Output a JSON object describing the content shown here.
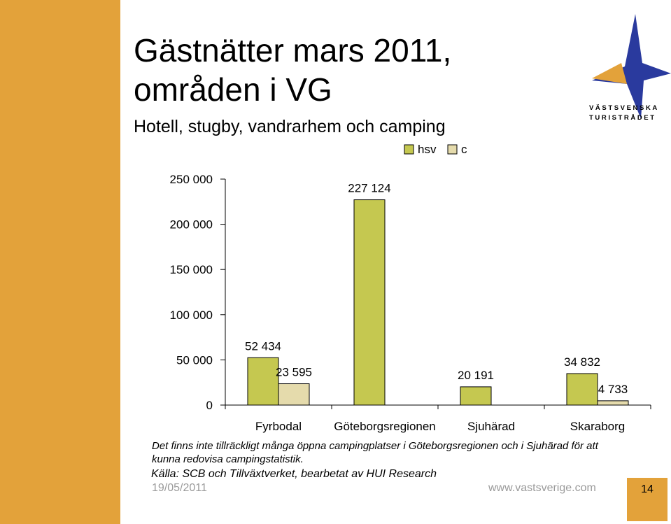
{
  "slide": {
    "title_line1": "Gästnätter mars 2011,",
    "title_line2": "områden i VG",
    "subtitle": "Hotell, stugby, vandrarhem och camping",
    "note_line1": "Det finns inte tillräckligt många öppna campingplatser i Göteborgsregionen och i Sjuhärad för att",
    "note_line2": "kunna redovisa campingstatistik.",
    "source": "Källa: SCB och Tillväxtverket, bearbetat av HUI Research",
    "date": "19/05/2011",
    "website": "www.vastsverige.com",
    "page_number": "14"
  },
  "logo": {
    "line1": "VÄSTSVENSKA",
    "line2": "TURISTRÅDET",
    "star_color": "#2a3a9e",
    "accent_color": "#e3a23a"
  },
  "colors": {
    "sidebar": "#e3a23a",
    "hsv": "#c5c850",
    "c": "#e5dbac",
    "gray_text": "#9a9a9a"
  },
  "chart_data": {
    "type": "bar",
    "categories": [
      "Fyrbodal",
      "Göteborgsregionen",
      "Sjuhärad",
      "Skaraborg"
    ],
    "series": [
      {
        "name": "hsv",
        "values": [
          52434,
          227124,
          20191,
          34832
        ],
        "labels": [
          "52 434",
          "227 124",
          "20 191",
          "34 832"
        ]
      },
      {
        "name": "c",
        "values": [
          23595,
          null,
          null,
          4733
        ],
        "labels": [
          "23 595",
          "",
          "",
          "4 733"
        ]
      }
    ],
    "ylim": [
      0,
      250000
    ],
    "yticks": [
      0,
      50000,
      100000,
      150000,
      200000,
      250000
    ],
    "ytick_labels": [
      "0",
      "50 000",
      "100 000",
      "150 000",
      "200 000",
      "250 000"
    ],
    "legend_position": "top-right",
    "grid": false
  }
}
